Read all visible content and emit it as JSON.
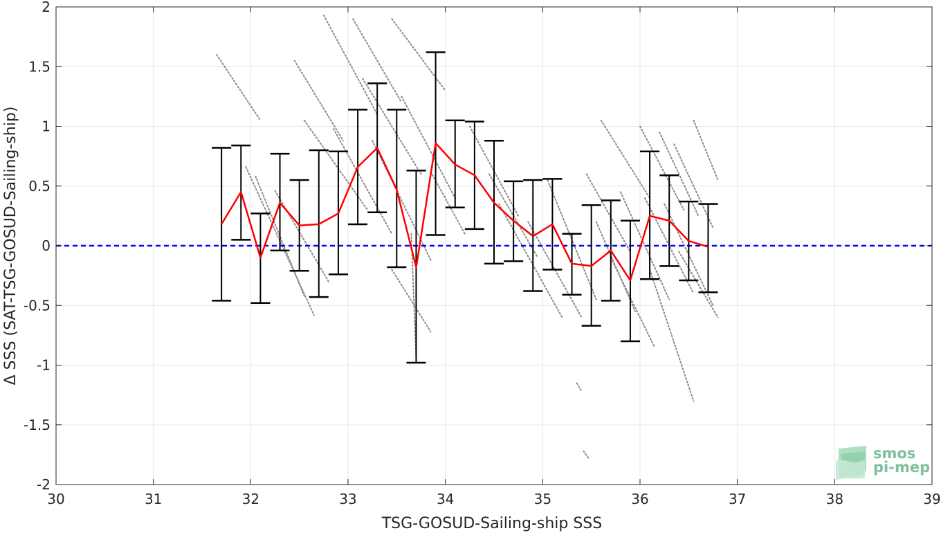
{
  "chart_data": {
    "type": "scatter",
    "xlabel": "TSG-GOSUD-Sailing-ship SSS",
    "ylabel": "Δ SSS (SAT-TSG-GOSUD-Sailing-ship)",
    "xlim": [
      30,
      39
    ],
    "ylim": [
      -2,
      2
    ],
    "x_ticks": [
      30,
      31,
      32,
      33,
      34,
      35,
      36,
      37,
      38,
      39
    ],
    "y_ticks": [
      -2,
      -1.5,
      -1,
      -0.5,
      0,
      0.5,
      1,
      1.5,
      2
    ],
    "y_tick_labels": [
      "-2",
      "-1.5",
      "-1",
      "-0.5",
      "0",
      "0.5",
      "1",
      "1.5",
      "2"
    ],
    "grid": true,
    "reference_line": {
      "y": 0,
      "style": "dashed",
      "color": "#0000ff"
    },
    "series": [
      {
        "type": "line-errorbar",
        "color": "#ff0000",
        "errorbar_color": "#000000",
        "x": [
          31.7,
          31.9,
          32.1,
          32.3,
          32.5,
          32.7,
          32.9,
          33.1,
          33.3,
          33.5,
          33.7,
          33.9,
          34.1,
          34.3,
          34.5,
          34.7,
          34.9,
          35.1,
          35.3,
          35.5,
          35.7,
          35.9,
          36.1,
          36.3,
          36.5,
          36.7
        ],
        "y": [
          0.18,
          0.45,
          -0.1,
          0.36,
          0.17,
          0.18,
          0.27,
          0.66,
          0.82,
          0.47,
          -0.18,
          0.86,
          0.68,
          0.59,
          0.36,
          0.21,
          0.08,
          0.18,
          -0.15,
          -0.17,
          -0.04,
          -0.29,
          0.25,
          0.21,
          0.04,
          -0.01
        ],
        "upper": [
          0.82,
          0.84,
          0.27,
          0.77,
          0.55,
          0.8,
          0.79,
          1.14,
          1.36,
          1.14,
          0.63,
          1.62,
          1.05,
          1.04,
          0.88,
          0.54,
          0.55,
          0.56,
          0.1,
          0.34,
          0.38,
          0.21,
          0.79,
          0.59,
          0.37,
          0.35
        ],
        "lower": [
          -0.46,
          0.05,
          -0.48,
          -0.04,
          -0.21,
          -0.43,
          -0.24,
          0.18,
          0.28,
          -0.18,
          -0.98,
          0.09,
          0.32,
          0.14,
          -0.15,
          -0.13,
          -0.38,
          -0.2,
          -0.41,
          -0.67,
          -0.46,
          -0.8,
          -0.28,
          -0.17,
          -0.29,
          -0.39
        ]
      },
      {
        "type": "scatter-strips",
        "color": "#8c8c8c",
        "strips": [
          [
            31.65,
            1.6,
            32.1,
            1.05
          ],
          [
            31.95,
            0.66,
            32.65,
            -0.58
          ],
          [
            32.05,
            0.58,
            32.55,
            -0.42
          ],
          [
            32.25,
            0.46,
            32.8,
            -0.3
          ],
          [
            32.45,
            1.55,
            32.95,
            0.88
          ],
          [
            32.55,
            1.05,
            33.2,
            0.3
          ],
          [
            32.75,
            1.93,
            33.3,
            1.1
          ],
          [
            32.85,
            0.98,
            33.45,
            0.1
          ],
          [
            33.05,
            1.9,
            33.55,
            1.2
          ],
          [
            33.15,
            1.4,
            33.75,
            0.6
          ],
          [
            33.25,
            0.88,
            33.85,
            -0.12
          ],
          [
            33.45,
            1.9,
            34.0,
            1.3
          ],
          [
            33.55,
            1.25,
            34.1,
            0.4
          ],
          [
            33.45,
            -0.2,
            33.85,
            -0.72
          ],
          [
            33.65,
            0.1,
            33.7,
            -0.95
          ],
          [
            33.85,
            0.62,
            34.2,
            0.1
          ],
          [
            34.25,
            1.0,
            34.75,
            0.25
          ],
          [
            34.45,
            0.6,
            34.95,
            -0.1
          ],
          [
            34.55,
            0.35,
            35.2,
            -0.6
          ],
          [
            34.85,
            0.2,
            35.4,
            -0.6
          ],
          [
            35.05,
            0.55,
            35.55,
            -0.45
          ],
          [
            35.45,
            0.6,
            35.9,
            -0.05
          ],
          [
            35.55,
            0.2,
            35.95,
            -0.55
          ],
          [
            35.6,
            1.05,
            36.1,
            0.4
          ],
          [
            35.7,
            -0.1,
            36.15,
            -0.85
          ],
          [
            35.8,
            0.45,
            36.3,
            -0.45
          ],
          [
            36.0,
            1.0,
            36.45,
            0.3
          ],
          [
            36.05,
            0.4,
            36.55,
            -0.4
          ],
          [
            36.1,
            -0.2,
            36.55,
            -1.3
          ],
          [
            36.2,
            0.95,
            36.6,
            0.25
          ],
          [
            36.25,
            0.35,
            36.75,
            -0.5
          ],
          [
            36.35,
            0.85,
            36.75,
            0.15
          ],
          [
            36.4,
            -0.05,
            36.8,
            -0.6
          ],
          [
            36.55,
            1.05,
            36.8,
            0.55
          ],
          [
            35.42,
            -1.72,
            35.48,
            -1.79
          ],
          [
            35.35,
            -1.15,
            35.4,
            -1.22
          ]
        ]
      }
    ]
  },
  "logo": {
    "line1": "smos",
    "line2": "pi-mep"
  }
}
